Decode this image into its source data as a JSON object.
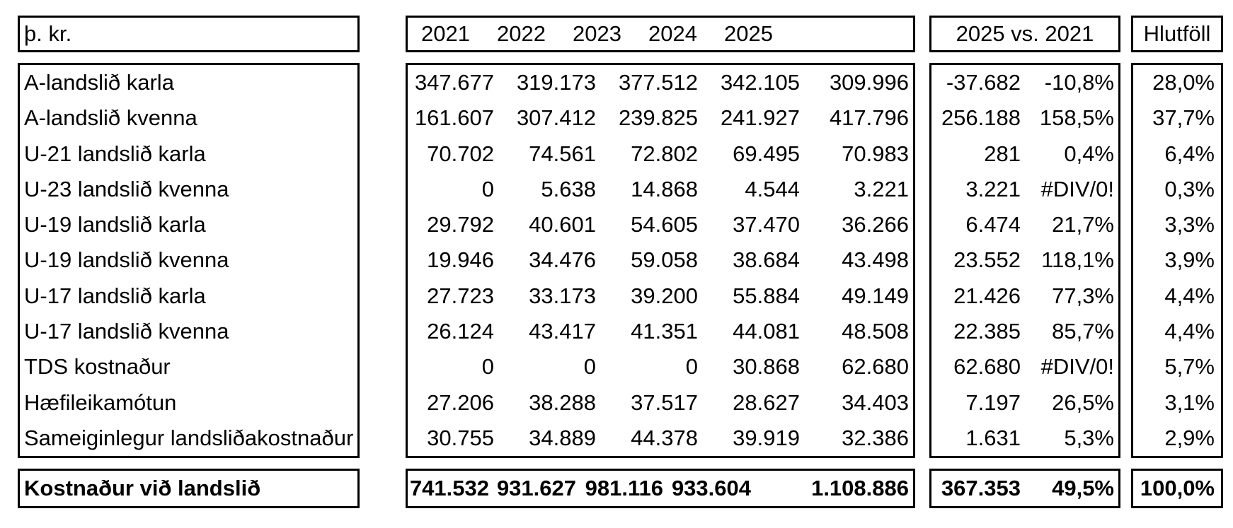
{
  "table": {
    "unit_label": "þ. kr.",
    "year_headers": [
      "2021",
      "2022",
      "2023",
      "2024",
      "2025"
    ],
    "vs_header": "2025 vs. 2021",
    "ratio_header": "Hlutföll",
    "rows": [
      {
        "label": "A-landslið karla",
        "values": [
          "347.677",
          "319.173",
          "377.512",
          "342.105",
          "309.996"
        ],
        "diff": "-37.682",
        "pct": "-10,8%",
        "ratio": "28,0%"
      },
      {
        "label": "A-landslið kvenna",
        "values": [
          "161.607",
          "307.412",
          "239.825",
          "241.927",
          "417.796"
        ],
        "diff": "256.188",
        "pct": "158,5%",
        "ratio": "37,7%"
      },
      {
        "label": "U-21 landslið karla",
        "values": [
          "70.702",
          "74.561",
          "72.802",
          "69.495",
          "70.983"
        ],
        "diff": "281",
        "pct": "0,4%",
        "ratio": "6,4%"
      },
      {
        "label": "U-23 landslið kvenna",
        "values": [
          "0",
          "5.638",
          "14.868",
          "4.544",
          "3.221"
        ],
        "diff": "3.221",
        "pct": "#DIV/0!",
        "ratio": "0,3%"
      },
      {
        "label": "U-19 landslið karla",
        "values": [
          "29.792",
          "40.601",
          "54.605",
          "37.470",
          "36.266"
        ],
        "diff": "6.474",
        "pct": "21,7%",
        "ratio": "3,3%"
      },
      {
        "label": "U-19 landslið kvenna",
        "values": [
          "19.946",
          "34.476",
          "59.058",
          "38.684",
          "43.498"
        ],
        "diff": "23.552",
        "pct": "118,1%",
        "ratio": "3,9%"
      },
      {
        "label": "U-17 landslið karla",
        "values": [
          "27.723",
          "33.173",
          "39.200",
          "55.884",
          "49.149"
        ],
        "diff": "21.426",
        "pct": "77,3%",
        "ratio": "4,4%"
      },
      {
        "label": "U-17 landslið kvenna",
        "values": [
          "26.124",
          "43.417",
          "41.351",
          "44.081",
          "48.508"
        ],
        "diff": "22.385",
        "pct": "85,7%",
        "ratio": "4,4%"
      },
      {
        "label": "TDS kostnaður",
        "values": [
          "0",
          "0",
          "0",
          "30.868",
          "62.680"
        ],
        "diff": "62.680",
        "pct": "#DIV/0!",
        "ratio": "5,7%"
      },
      {
        "label": "Hæfileikamótun",
        "values": [
          "27.206",
          "38.288",
          "37.517",
          "28.627",
          "34.403"
        ],
        "diff": "7.197",
        "pct": "26,5%",
        "ratio": "3,1%"
      },
      {
        "label": "Sameiginlegur landsliðakostnaður",
        "values": [
          "30.755",
          "34.889",
          "44.378",
          "39.919",
          "32.386"
        ],
        "diff": "1.631",
        "pct": "5,3%",
        "ratio": "2,9%"
      }
    ],
    "total": {
      "label": "Kostnaður við landslið",
      "values": [
        "741.532",
        "931.627",
        "981.116",
        "933.604",
        "1.108.886"
      ],
      "diff": "367.353",
      "pct": "49,5%",
      "ratio": "100,0%"
    },
    "colors": {
      "border": "#000000",
      "background": "#ffffff",
      "text": "#000000"
    }
  }
}
